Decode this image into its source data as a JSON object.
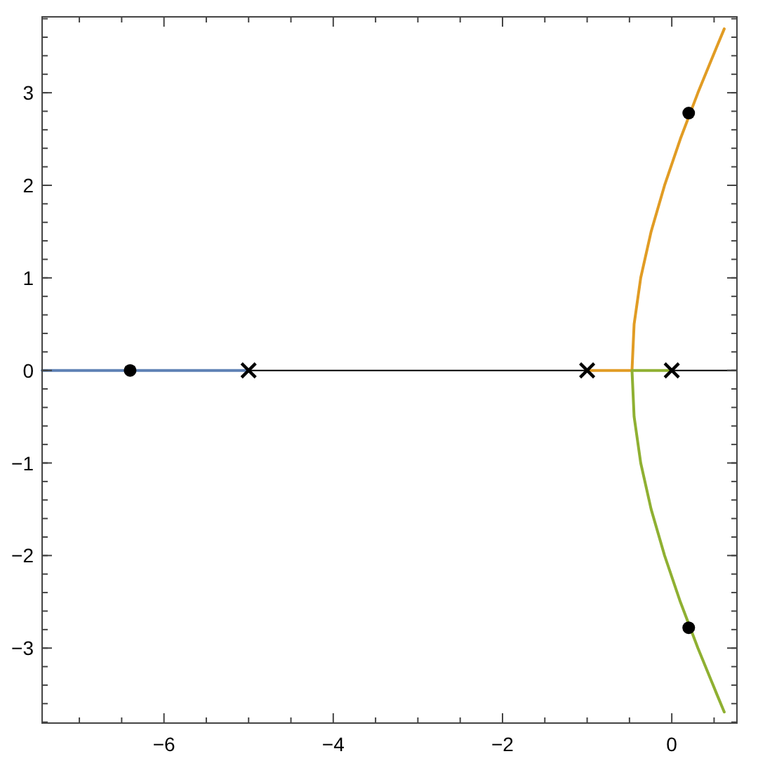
{
  "chart_data": {
    "type": "line",
    "xlim": [
      -7.44,
      0.77
    ],
    "ylim": [
      -3.81,
      3.82
    ],
    "xticks": [
      {
        "value": -7,
        "label": null
      },
      {
        "value": -6.5,
        "label": null
      },
      -6,
      {
        "value": -5.5,
        "label": null
      },
      {
        "value": -5,
        "label": null
      },
      {
        "value": -4.5,
        "label": null
      },
      -4,
      {
        "value": -3.5,
        "label": null
      },
      {
        "value": -3,
        "label": null
      },
      {
        "value": -2.5,
        "label": null
      },
      -2,
      {
        "value": -1.5,
        "label": null
      },
      {
        "value": -1,
        "label": null
      },
      {
        "value": -0.5,
        "label": null
      },
      0,
      {
        "value": 0.5,
        "label": null
      }
    ],
    "yticks": [
      -3,
      -2,
      -1,
      0,
      1,
      2,
      3
    ],
    "grid": false,
    "ref_lines": [
      {
        "axis": "y",
        "value": 0,
        "color": "#000000"
      }
    ],
    "series": [
      {
        "color": "#5e81b5",
        "x": [
          -5,
          -7.44
        ],
        "values": [
          0,
          0
        ]
      },
      {
        "color": "#e19c24",
        "x": [
          -1,
          -0.47,
          -0.445,
          -0.367,
          -0.244,
          -0.085,
          0.101,
          0.309,
          0.533,
          0.62
        ],
        "values": [
          0,
          0,
          0.5,
          1,
          1.5,
          2,
          2.5,
          3,
          3.5,
          3.69
        ]
      },
      {
        "color": "#8fb032",
        "x": [
          0,
          -0.47,
          -0.445,
          -0.367,
          -0.244,
          -0.085,
          0.101,
          0.309,
          0.533,
          0.62
        ],
        "values": [
          0,
          0,
          -0.5,
          -1,
          -1.5,
          -2,
          -2.5,
          -3,
          -3.5,
          -3.69
        ]
      },
      {
        "type": "scatter",
        "color": "#000000",
        "x": [
          -5,
          -1,
          0
        ],
        "values": [
          0,
          0,
          0
        ],
        "marker": "cross"
      },
      {
        "type": "scatter",
        "color": "#000000",
        "x": [
          -6.4,
          0.2,
          0.2
        ],
        "values": [
          0,
          2.78,
          -2.78
        ],
        "marker": "circle"
      }
    ]
  }
}
